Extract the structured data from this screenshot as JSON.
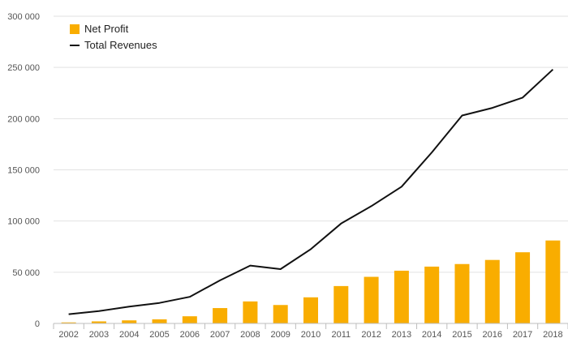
{
  "chart_data": {
    "type": "bar",
    "title": "",
    "xlabel": "",
    "ylabel": "",
    "categories": [
      "2002",
      "2003",
      "2004",
      "2005",
      "2006",
      "2007",
      "2008",
      "2009",
      "2010",
      "2011",
      "2012",
      "2013",
      "2014",
      "2015",
      "2016",
      "2017",
      "2018"
    ],
    "ylim": [
      0,
      300000
    ],
    "yticks": [
      0,
      50000,
      100000,
      150000,
      200000,
      250000,
      300000
    ],
    "ytick_labels": [
      "0",
      "50 000",
      "100 000",
      "150 000",
      "200 000",
      "250 000",
      "300 000"
    ],
    "grid": true,
    "legend_position": "top-left",
    "series": [
      {
        "name": "Net Profit",
        "kind": "bar",
        "color": "#f9ad00",
        "values": [
          1000,
          2000,
          3000,
          4000,
          7000,
          15000,
          21500,
          18000,
          25500,
          36500,
          45500,
          51500,
          55500,
          58000,
          62000,
          69500,
          81000
        ]
      },
      {
        "name": "Total Revenues",
        "kind": "line",
        "color": "#111111",
        "values": [
          9000,
          12000,
          16500,
          20000,
          26000,
          42000,
          56500,
          53000,
          72500,
          97500,
          114500,
          133500,
          167000,
          203000,
          210500,
          220500,
          248000
        ]
      }
    ]
  }
}
